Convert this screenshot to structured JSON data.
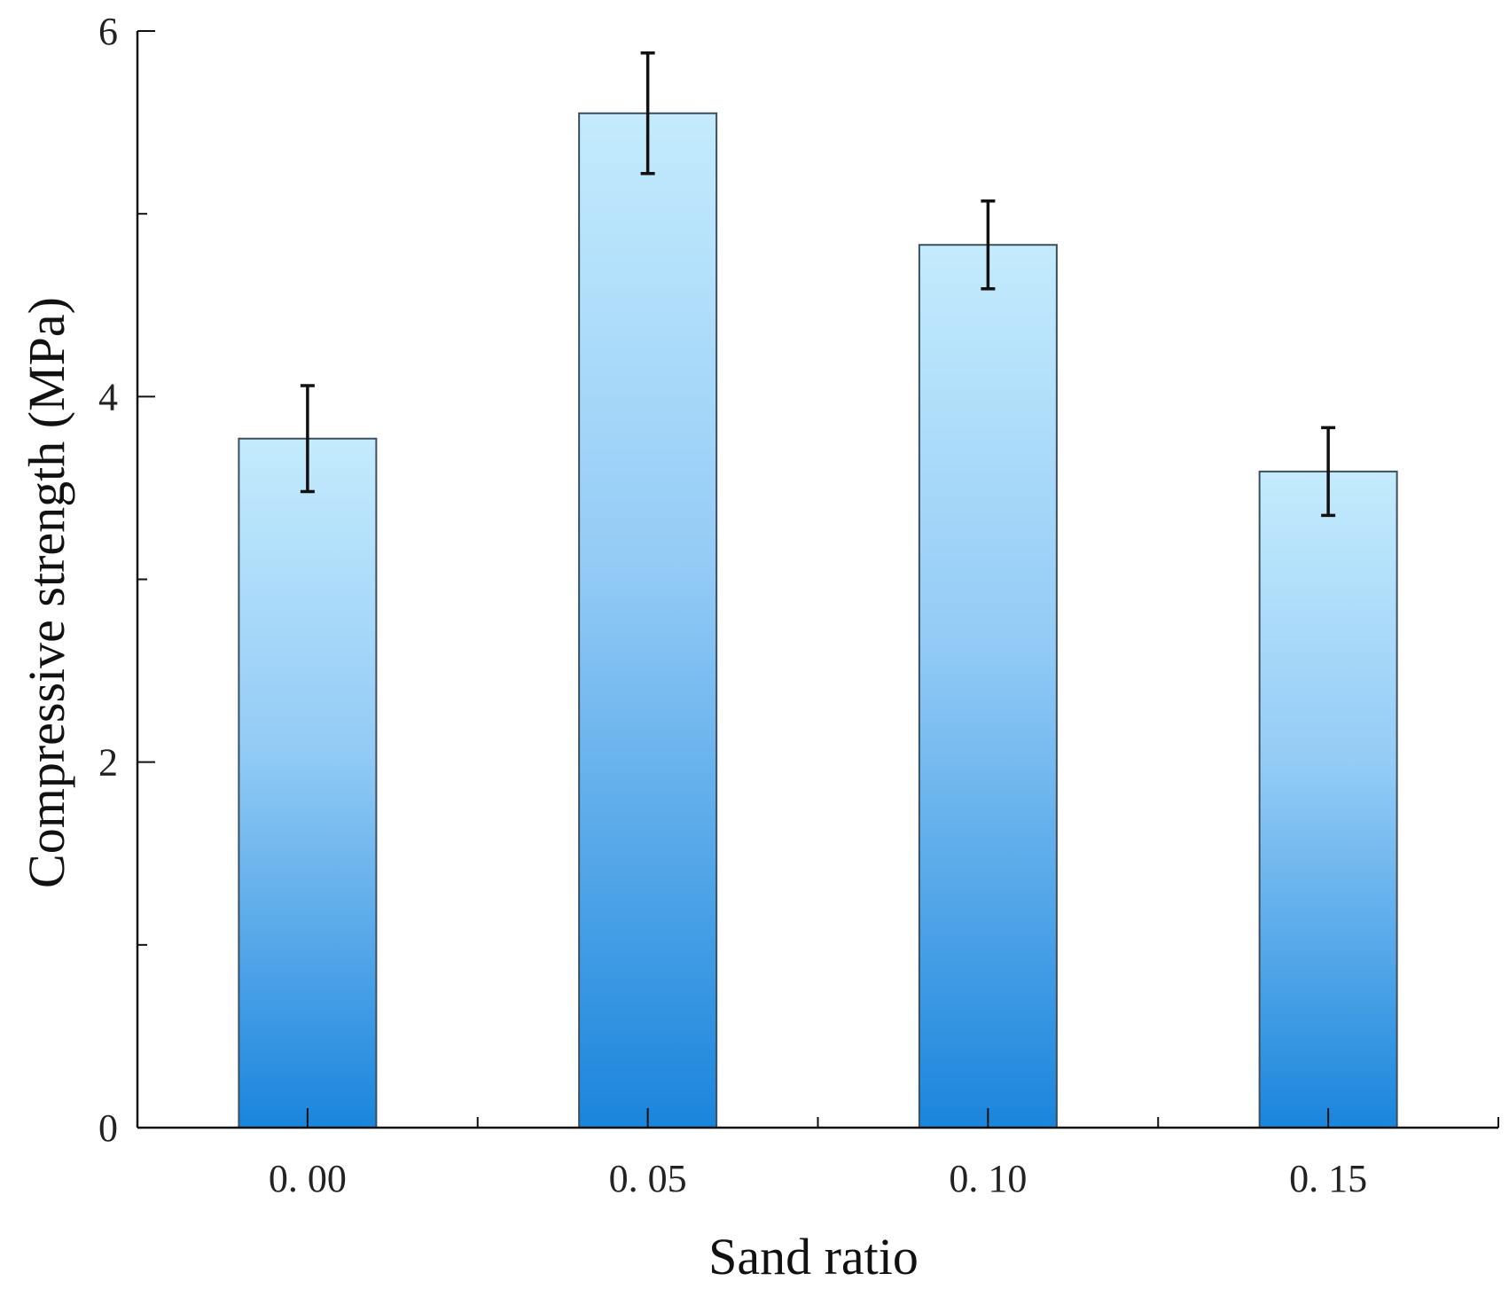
{
  "chart_data": {
    "type": "bar",
    "title": "",
    "xlabel": "Sand ratio",
    "ylabel": "Compressive strength (MPa)",
    "categories": [
      "0. 00",
      "0. 05",
      "0. 10",
      "0. 15"
    ],
    "values": [
      3.77,
      5.55,
      4.83,
      3.59
    ],
    "errors": [
      0.29,
      0.33,
      0.24,
      0.24
    ],
    "ylim": [
      0,
      6
    ],
    "yticks": [
      "0",
      "2",
      "4",
      "6"
    ],
    "grid": false,
    "legend": "none",
    "colors": {
      "bar_top": "#c4ebfd",
      "bar_bottom": "#1a85dc",
      "bar_stroke": "#3d4f5c",
      "axis": "#111111",
      "error_bar": "#111111"
    }
  }
}
